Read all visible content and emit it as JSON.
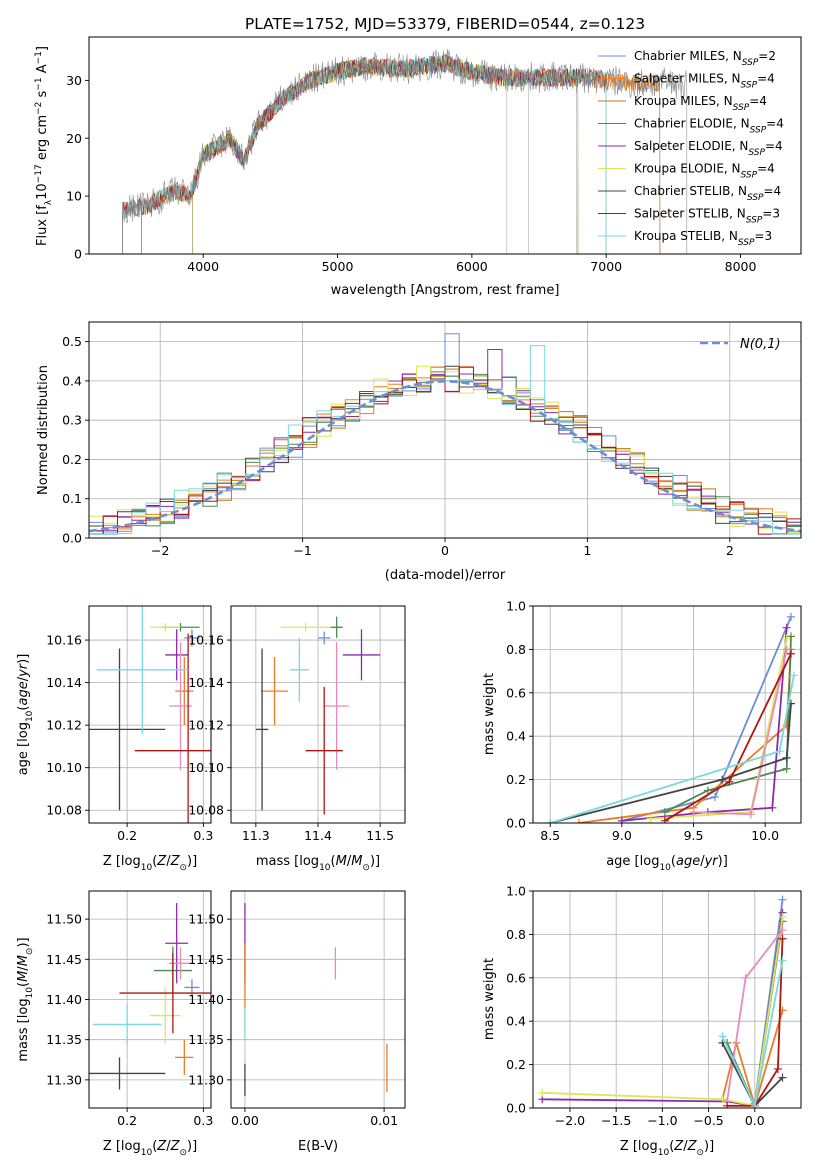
{
  "figure": {
    "title": "PLATE=1752, MJD=53379, FIBERID=0544, z=0.123"
  },
  "colors": {
    "Chabrier MILES": "#6a8ed8",
    "Salpeter MILES": "#ef7a22",
    "Kroupa MILES": "#c47a10",
    "Chabrier ELODIE": "#4d8a4d",
    "Salpeter ELODIE": "#8e2aa8",
    "Kroupa ELODIE": "#d9e85a",
    "Chabrier STELIB": "#444444",
    "Salpeter STELIB": "#b01515",
    "Kroupa STELIB": "#7ad8e0",
    "pink": "#e889c0"
  },
  "chart_data": [
    {
      "id": "spectrum",
      "type": "line",
      "title": "PLATE=1752, MJD=53379, FIBERID=0544, z=0.123",
      "xlabel": "wavelength [Angstrom, rest frame]",
      "ylabel": "Flux [f_λ 10^-17 erg cm^-2 s^-1 A^-1]",
      "xlim": [
        3150,
        8450
      ],
      "ylim": [
        0,
        37.5
      ],
      "xticks": [
        4000,
        5000,
        6000,
        7000,
        8000
      ],
      "yticks": [
        0,
        10,
        20,
        30
      ],
      "grid": false,
      "legend_position": "top-right",
      "spectrum_anchors": {
        "x": [
          3400,
          3600,
          3800,
          3900,
          3950,
          4000,
          4200,
          4300,
          4400,
          4600,
          4800,
          5000,
          5200,
          5500,
          5800,
          6000,
          6200,
          6500,
          6800,
          7000,
          7200
        ],
        "y": [
          7.5,
          8.5,
          11,
          10,
          13,
          17,
          20,
          16,
          22,
          27,
          30,
          31.5,
          32.5,
          32,
          33,
          31.5,
          30.5,
          30.5,
          30.5,
          30,
          29.5
        ]
      },
      "series": [
        {
          "name": "Chabrier MILES, N_SSP=2",
          "name_main": "Chabrier MILES, N",
          "sub": "SSP",
          "suffix": "=2",
          "x_range": [
            3540,
            7400
          ]
        },
        {
          "name": "Salpeter MILES, N_SSP=4",
          "name_main": "Salpeter MILES, N",
          "sub": "SSP",
          "suffix": "=4",
          "x_range": [
            3540,
            7400
          ]
        },
        {
          "name": "Kroupa MILES, N_SSP=4",
          "name_main": "Kroupa MILES, N",
          "sub": "SSP",
          "suffix": "=4",
          "x_range": [
            3540,
            7400
          ]
        },
        {
          "name": "Chabrier ELODIE, N_SSP=4",
          "name_main": "Chabrier ELODIE, N",
          "sub": "SSP",
          "suffix": "=4",
          "x_range": [
            3920,
            6790
          ]
        },
        {
          "name": "Salpeter ELODIE, N_SSP=4",
          "name_main": "Salpeter ELODIE, N",
          "sub": "SSP",
          "suffix": "=4",
          "x_range": [
            3920,
            6790
          ]
        },
        {
          "name": "Kroupa ELODIE, N_SSP=4",
          "name_main": "Kroupa ELODIE, N",
          "sub": "SSP",
          "suffix": "=4",
          "x_range": [
            3920,
            6790
          ]
        },
        {
          "name": "Chabrier STELIB, N_SSP=4",
          "name_main": "Chabrier STELIB, N",
          "sub": "SSP",
          "suffix": "=4",
          "x_range": [
            3400,
            7000
          ]
        },
        {
          "name": "Salpeter STELIB, N_SSP=3",
          "name_main": "Salpeter STELIB, N",
          "sub": "SSP",
          "suffix": "=3",
          "x_range": [
            3400,
            7000
          ]
        },
        {
          "name": "Kroupa STELIB, N_SSP=3",
          "name_main": "Kroupa STELIB, N",
          "sub": "SSP",
          "suffix": "=3",
          "x_range": [
            3400,
            7000
          ]
        }
      ],
      "data_series": {
        "name": "data",
        "x_range": [
          3400,
          7600
        ],
        "color": "#808080"
      }
    },
    {
      "id": "residuals",
      "type": "histogram",
      "xlabel": "(data-model)/error",
      "ylabel": "Normed distribution",
      "xlim": [
        -2.5,
        2.5
      ],
      "ylim": [
        0,
        0.55
      ],
      "xticks": [
        -2,
        -1,
        0,
        1,
        2
      ],
      "yticks": [
        0,
        0.1,
        0.2,
        0.3,
        0.4,
        0.5
      ],
      "grid": true,
      "legend_position": "top-right",
      "legend_label": "N(0,1)",
      "bin_width": 0.1,
      "hist_count": 9,
      "peak_bins": {
        "x": [
          0,
          0.3,
          0.7
        ],
        "y": [
          0.52,
          0.48,
          0.49
        ]
      }
    },
    {
      "id": "age_vs_Z",
      "type": "errorbar",
      "xlabel": "Z [log10(Z/Z_sun)]",
      "ylabel": "age [log10(age/yr)]",
      "xlim": [
        0.15,
        0.31
      ],
      "ylim": [
        10.074,
        10.176
      ],
      "xticks": [
        0.2,
        0.3
      ],
      "yticks": [
        10.08,
        10.1,
        10.12,
        10.14,
        10.16
      ],
      "grid": true,
      "points": [
        {
          "series": "Chabrier MILES",
          "x": 0.285,
          "y": 10.161,
          "xerr": 0.01,
          "yerr": 0.004
        },
        {
          "series": "Salpeter MILES",
          "x": 0.275,
          "y": 10.136,
          "xerr": 0.012,
          "yerr": 0.016
        },
        {
          "series": "Chabrier ELODIE",
          "x": 0.27,
          "y": 10.166,
          "xerr": 0.025,
          "yerr": 0.002
        },
        {
          "series": "Salpeter ELODIE",
          "x": 0.265,
          "y": 10.153,
          "xerr": 0.015,
          "yerr": 0.012
        },
        {
          "series": "Kroupa ELODIE",
          "x": 0.25,
          "y": 10.166,
          "xerr": 0.02,
          "yerr": 0.002
        },
        {
          "series": "pink",
          "x": 0.27,
          "y": 10.129,
          "xerr": 0.015,
          "yerr": 0.03
        },
        {
          "series": "Chabrier STELIB",
          "x": 0.19,
          "y": 10.118,
          "xerr": 0.06,
          "yerr": 0.038
        },
        {
          "series": "Salpeter STELIB",
          "x": 0.28,
          "y": 10.108,
          "xerr": 0.07,
          "yerr": 0.055
        },
        {
          "series": "Kroupa STELIB",
          "x": 0.22,
          "y": 10.146,
          "xerr": 0.06,
          "yerr": 0.03
        }
      ]
    },
    {
      "id": "age_vs_mass",
      "type": "errorbar",
      "xlabel": "mass [log10(M/M_sun)]",
      "ylabel": "",
      "xlim": [
        11.26,
        11.54
      ],
      "ylim": [
        10.074,
        10.176
      ],
      "xticks": [
        11.3,
        11.4,
        11.5
      ],
      "yticks": [
        10.08,
        10.1,
        10.12,
        10.14,
        10.16
      ],
      "grid": true,
      "points": [
        {
          "series": "Chabrier MILES",
          "x": 11.41,
          "y": 10.161,
          "xerr": 0.01,
          "yerr": 0.003
        },
        {
          "series": "Salpeter MILES",
          "x": 11.33,
          "y": 10.136,
          "xerr": 0.022,
          "yerr": 0.016
        },
        {
          "series": "Chabrier ELODIE",
          "x": 11.43,
          "y": 10.166,
          "xerr": 0.01,
          "yerr": 0.005
        },
        {
          "series": "Salpeter ELODIE",
          "x": 11.47,
          "y": 10.153,
          "xerr": 0.03,
          "yerr": 0.012
        },
        {
          "series": "Kroupa ELODIE",
          "x": 11.38,
          "y": 10.166,
          "xerr": 0.04,
          "yerr": 0.002
        },
        {
          "series": "pink",
          "x": 11.43,
          "y": 10.129,
          "xerr": 0.02,
          "yerr": 0.03
        },
        {
          "series": "Chabrier STELIB",
          "x": 11.31,
          "y": 10.118,
          "xerr": 0.01,
          "yerr": 0.038
        },
        {
          "series": "Salpeter STELIB",
          "x": 11.41,
          "y": 10.108,
          "xerr": 0.03,
          "yerr": 0.03
        },
        {
          "series": "Kroupa STELIB",
          "x": 11.37,
          "y": 10.146,
          "xerr": 0.015,
          "yerr": 0.015
        }
      ]
    },
    {
      "id": "weight_vs_age",
      "type": "line",
      "xlabel": "age  [log10(age/yr)]",
      "ylabel": "mass weight",
      "xlim": [
        8.38,
        10.25
      ],
      "ylim": [
        0,
        1.0
      ],
      "xticks": [
        8.5,
        9.0,
        9.5,
        10.0
      ],
      "yticks": [
        0.0,
        0.2,
        0.4,
        0.6,
        0.8,
        1.0
      ],
      "grid": true,
      "series": [
        {
          "name": "Chabrier MILES",
          "x": [
            9.0,
            9.65,
            10.18
          ],
          "y": [
            0.01,
            0.12,
            0.95
          ]
        },
        {
          "name": "Salpeter MILES",
          "x": [
            8.7,
            9.5,
            10.15,
            10.18
          ],
          "y": [
            0.0,
            0.07,
            0.45,
            0.8
          ]
        },
        {
          "name": "Chabrier ELODIE",
          "x": [
            9.3,
            9.6,
            10.15,
            10.18
          ],
          "y": [
            0.05,
            0.15,
            0.25,
            0.86
          ]
        },
        {
          "name": "Salpeter ELODIE",
          "x": [
            9.0,
            9.6,
            10.05,
            10.15
          ],
          "y": [
            0.01,
            0.05,
            0.07,
            0.9
          ]
        },
        {
          "name": "Kroupa ELODIE",
          "x": [
            9.2,
            9.9,
            10.15
          ],
          "y": [
            0.02,
            0.05,
            0.85
          ]
        },
        {
          "name": "pink",
          "x": [
            9.5,
            9.9,
            10.15
          ],
          "y": [
            0.05,
            0.04,
            0.8
          ]
        },
        {
          "name": "Chabrier STELIB",
          "x": [
            8.5,
            9.7,
            10.15,
            10.18
          ],
          "y": [
            0.0,
            0.2,
            0.3,
            0.55
          ]
        },
        {
          "name": "Salpeter STELIB",
          "x": [
            9.3,
            9.75,
            10.18
          ],
          "y": [
            0.01,
            0.19,
            0.78
          ]
        },
        {
          "name": "Kroupa STELIB",
          "x": [
            8.5,
            10.1,
            10.2
          ],
          "y": [
            0.0,
            0.33,
            0.68
          ]
        }
      ]
    },
    {
      "id": "mass_vs_Z",
      "type": "errorbar",
      "xlabel": "Z [log10(Z/Z_sun)]",
      "ylabel": "mass [log10(M/M_sun)]",
      "xlim": [
        0.15,
        0.31
      ],
      "ylim": [
        11.265,
        11.535
      ],
      "xticks": [
        0.2,
        0.3
      ],
      "yticks": [
        11.3,
        11.35,
        11.4,
        11.45,
        11.5
      ],
      "grid": true,
      "points": [
        {
          "series": "Chabrier MILES",
          "x": 0.285,
          "y": 11.415,
          "xerr": 0.01,
          "yerr": 0.01
        },
        {
          "series": "Salpeter MILES",
          "x": 0.275,
          "y": 11.328,
          "xerr": 0.012,
          "yerr": 0.022
        },
        {
          "series": "Chabrier ELODIE",
          "x": 0.26,
          "y": 11.436,
          "xerr": 0.025,
          "yerr": 0.03
        },
        {
          "series": "Salpeter ELODIE",
          "x": 0.265,
          "y": 11.47,
          "xerr": 0.015,
          "yerr": 0.05
        },
        {
          "series": "Kroupa ELODIE",
          "x": 0.25,
          "y": 11.38,
          "xerr": 0.02,
          "yerr": 0.035
        },
        {
          "series": "pink",
          "x": 0.27,
          "y": 11.445,
          "xerr": 0.015,
          "yerr": 0.02
        },
        {
          "series": "Chabrier STELIB",
          "x": 0.19,
          "y": 11.308,
          "xerr": 0.06,
          "yerr": 0.02
        },
        {
          "series": "Salpeter STELIB",
          "x": 0.26,
          "y": 11.408,
          "xerr": 0.07,
          "yerr": 0.05
        },
        {
          "series": "Kroupa STELIB",
          "x": 0.2,
          "y": 11.369,
          "xerr": 0.045,
          "yerr": 0.025
        }
      ]
    },
    {
      "id": "mass_vs_EBV",
      "type": "errorbar",
      "xlabel": "E(B-V)",
      "ylabel": "",
      "xlim": [
        -0.001,
        0.0115
      ],
      "ylim": [
        11.265,
        11.535
      ],
      "xticks": [
        0.0,
        0.01
      ],
      "yticks": [
        11.3,
        11.35,
        11.4,
        11.45,
        11.5
      ],
      "grid": true,
      "points": [
        {
          "series": "Salpeter ELODIE",
          "x": 0.0,
          "y": 11.47,
          "xerr": 0.0,
          "yerr": 0.05
        },
        {
          "series": "Salpeter MILES",
          "x": 0.0,
          "y": 11.43,
          "xerr": 0.0,
          "yerr": 0.04
        },
        {
          "series": "Kroupa STELIB",
          "x": 0.0,
          "y": 11.37,
          "xerr": 0.0,
          "yerr": 0.02
        },
        {
          "series": "Chabrier STELIB",
          "x": 0.0,
          "y": 11.3,
          "xerr": 0.0,
          "yerr": 0.02
        },
        {
          "series": "pink",
          "x": 0.0065,
          "y": 11.445,
          "xerr": 0.0,
          "yerr": 0.02
        },
        {
          "series": "Salpeter MILES",
          "x": 0.0102,
          "y": 11.315,
          "xerr": 0.0,
          "yerr": 0.03
        }
      ]
    },
    {
      "id": "weight_vs_Z",
      "type": "line",
      "xlabel": "Z [log10(Z/Z_sun)]",
      "ylabel": "mass weight",
      "xlim": [
        -2.4,
        0.5
      ],
      "ylim": [
        0,
        1.0
      ],
      "xticks": [
        -2.0,
        -1.5,
        -1.0,
        -0.5,
        0.0
      ],
      "yticks": [
        0.0,
        0.2,
        0.4,
        0.6,
        0.8,
        1.0
      ],
      "grid": true,
      "series": [
        {
          "name": "Chabrier MILES",
          "x": [
            0.0,
            0.3
          ],
          "y": [
            0.02,
            0.96
          ]
        },
        {
          "name": "Salpeter MILES",
          "x": [
            -0.35,
            -0.2,
            0.0,
            0.3
          ],
          "y": [
            0.04,
            0.3,
            0.01,
            0.45
          ]
        },
        {
          "name": "Chabrier ELODIE",
          "x": [
            -0.3,
            0.0,
            0.3
          ],
          "y": [
            0.3,
            0.01,
            0.86
          ]
        },
        {
          "name": "Salpeter ELODIE",
          "x": [
            -2.3,
            -0.3,
            0.0,
            0.3
          ],
          "y": [
            0.04,
            0.03,
            0.01,
            0.9
          ]
        },
        {
          "name": "Kroupa ELODIE",
          "x": [
            -2.3,
            -0.35,
            0.0,
            0.3
          ],
          "y": [
            0.07,
            0.04,
            0.01,
            0.88
          ]
        },
        {
          "name": "pink",
          "x": [
            -0.3,
            -0.1,
            0.3
          ],
          "y": [
            0.03,
            0.6,
            0.82
          ]
        },
        {
          "name": "Chabrier STELIB",
          "x": [
            -0.35,
            0.0,
            0.3
          ],
          "y": [
            0.3,
            0.01,
            0.14
          ]
        },
        {
          "name": "Salpeter STELIB",
          "x": [
            -0.3,
            0.0,
            0.25,
            0.3
          ],
          "y": [
            0.01,
            0.01,
            0.18,
            0.78
          ]
        },
        {
          "name": "Kroupa STELIB",
          "x": [
            -0.35,
            0.0,
            0.3
          ],
          "y": [
            0.33,
            0.01,
            0.68
          ]
        }
      ]
    }
  ]
}
